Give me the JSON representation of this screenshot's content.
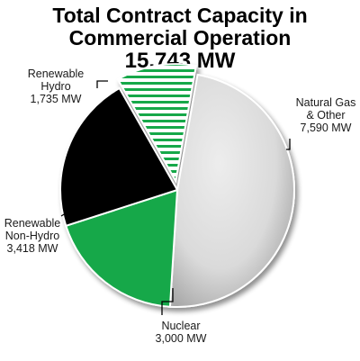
{
  "chart_data": {
    "type": "pie",
    "title_lines": [
      "Total Contract Capacity in",
      "Commercial Operation",
      "15,743 MW"
    ],
    "slices": [
      {
        "label_lines": [
          "Natural Gas",
          "& Other",
          "7,590 MW"
        ],
        "value": 7590,
        "color": "#d9d9d9",
        "pattern": "none"
      },
      {
        "label_lines": [
          "Nuclear",
          "3,000 MW"
        ],
        "value": 3000,
        "color": "#16a84a",
        "pattern": "none"
      },
      {
        "label_lines": [
          "Renewable",
          "Non-Hydro",
          "3,418 MW"
        ],
        "value": 3418,
        "color": "#000000",
        "pattern": "none"
      },
      {
        "label_lines": [
          "Renewable",
          "Hydro",
          "1,735 MW"
        ],
        "value": 1735,
        "color": "#ffffff",
        "pattern": "green-horizontal-stripes"
      }
    ],
    "stripe_color": "#16a84a",
    "total": 15743,
    "unit": "MW"
  }
}
